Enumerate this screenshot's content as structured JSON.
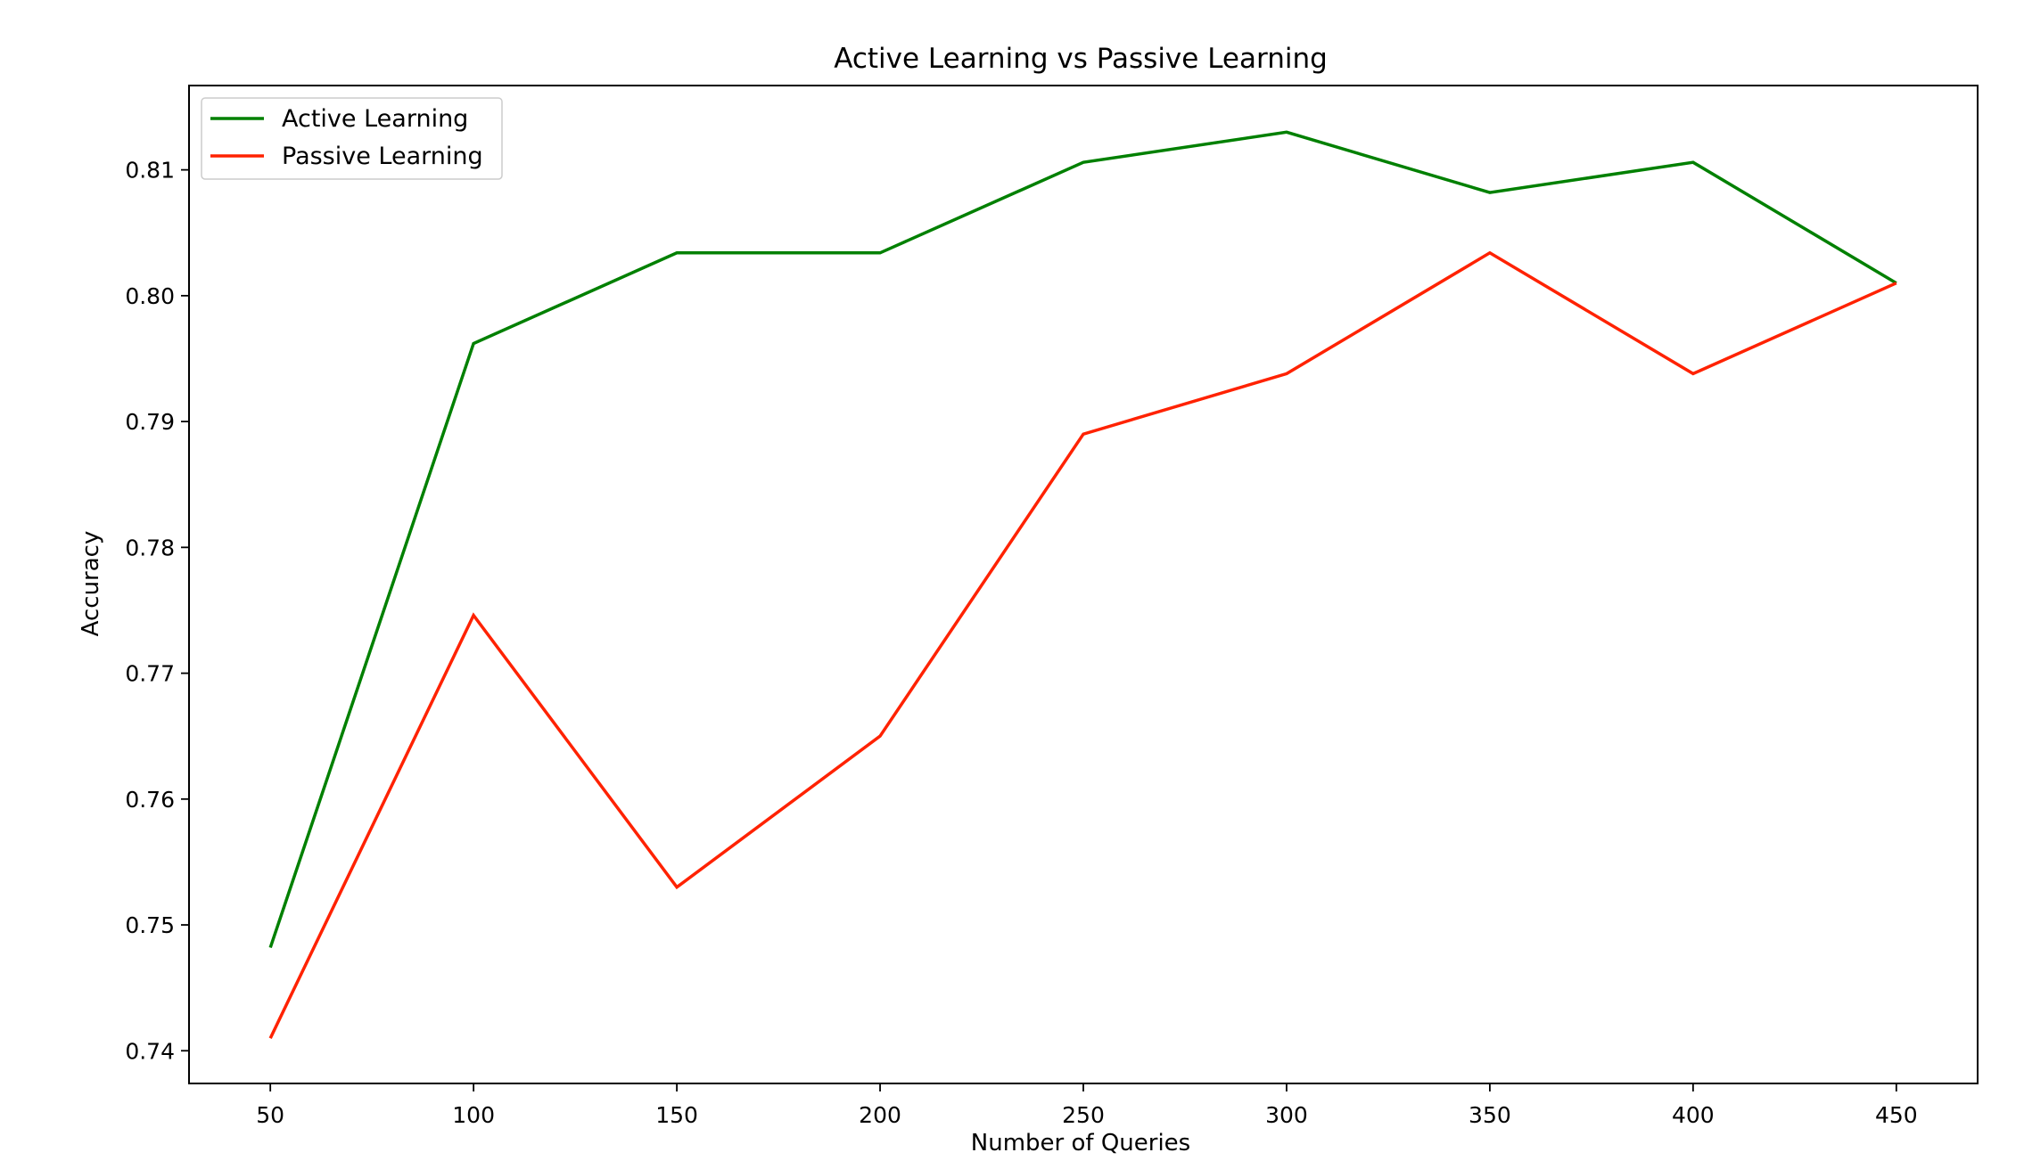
{
  "chart_data": {
    "type": "line",
    "title": "Active Learning vs Passive Learning",
    "xlabel": "Number of Queries",
    "ylabel": "Accuracy",
    "x": [
      50,
      100,
      150,
      200,
      250,
      300,
      350,
      400,
      450
    ],
    "xticks": [
      "50",
      "100",
      "150",
      "200",
      "250",
      "300",
      "350",
      "400",
      "450"
    ],
    "yticks": [
      "0.74",
      "0.75",
      "0.76",
      "0.77",
      "0.78",
      "0.79",
      "0.80",
      "0.81"
    ],
    "ytick_values": [
      0.74,
      0.75,
      0.76,
      0.77,
      0.78,
      0.79,
      0.8,
      0.81
    ],
    "xlim": [
      30,
      470
    ],
    "ylim": [
      0.7374,
      0.8167
    ],
    "grid": false,
    "legend_position": "top-left",
    "series": [
      {
        "name": "Active Learning",
        "color": "#008000",
        "values": [
          0.7482,
          0.7962,
          0.8034,
          0.8034,
          0.8106,
          0.813,
          0.8082,
          0.8106,
          0.801
        ]
      },
      {
        "name": "Passive Learning",
        "color": "#ff2200",
        "values": [
          0.741,
          0.7746,
          0.753,
          0.765,
          0.789,
          0.7938,
          0.8034,
          0.7938,
          0.801
        ]
      }
    ]
  }
}
